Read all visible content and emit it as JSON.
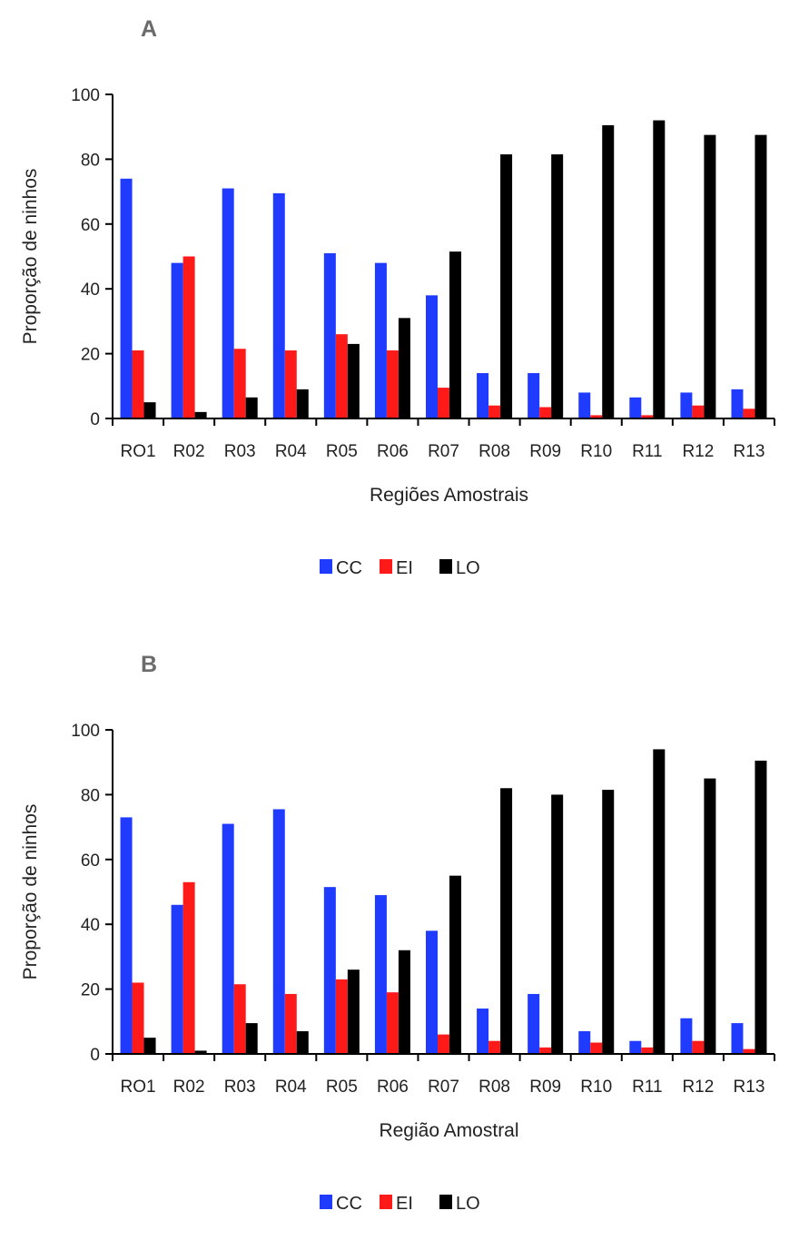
{
  "colors": {
    "CC": "#1f3bff",
    "EI": "#ff1a1a",
    "LO": "#000000"
  },
  "chart_data": [
    {
      "type": "bar",
      "panel_label": "A",
      "xlabel": "Regiões Amostrais",
      "ylabel": "Proporção de ninhos",
      "ylim": [
        0,
        100
      ],
      "yticks": [
        "0",
        "20",
        "40",
        "60",
        "80",
        "100"
      ],
      "categories": [
        "RO1",
        "R02",
        "R03",
        "R04",
        "R05",
        "R06",
        "R07",
        "R08",
        "R09",
        "R10",
        "R11",
        "R12",
        "R13"
      ],
      "series": [
        {
          "name": "CC",
          "values": [
            74,
            48,
            71,
            69.5,
            51,
            48,
            38,
            14,
            14,
            8,
            6.5,
            8,
            9
          ]
        },
        {
          "name": "EI",
          "values": [
            21,
            50,
            21.5,
            21,
            26,
            21,
            9.5,
            4,
            3.5,
            1,
            1,
            4,
            3
          ]
        },
        {
          "name": "LO",
          "values": [
            5,
            2,
            6.5,
            9,
            23,
            31,
            51.5,
            81.5,
            81.5,
            90.5,
            92,
            87.5,
            87.5
          ]
        }
      ],
      "legend": [
        "CC",
        "EI",
        "LO"
      ],
      "legend_position": "bottom",
      "grid": false
    },
    {
      "type": "bar",
      "panel_label": "B",
      "xlabel": "Região Amostral",
      "ylabel": "Proporção de ninhos",
      "ylim": [
        0,
        100
      ],
      "yticks": [
        "0",
        "20",
        "40",
        "60",
        "80",
        "100"
      ],
      "categories": [
        "RO1",
        "R02",
        "R03",
        "R04",
        "R05",
        "R06",
        "R07",
        "R08",
        "R09",
        "R10",
        "R11",
        "R12",
        "R13"
      ],
      "series": [
        {
          "name": "CC",
          "values": [
            73,
            46,
            71,
            75.5,
            51.5,
            49,
            38,
            14,
            18.5,
            7,
            4,
            11,
            9.5
          ]
        },
        {
          "name": "EI",
          "values": [
            22,
            53,
            21.5,
            18.5,
            23,
            19,
            6,
            4,
            2,
            3.5,
            2,
            4,
            1.5
          ]
        },
        {
          "name": "LO",
          "values": [
            5,
            1,
            9.5,
            7,
            26,
            32,
            55,
            82,
            80,
            81.5,
            94,
            85,
            90.5
          ]
        }
      ],
      "legend": [
        "CC",
        "EI",
        "LO"
      ],
      "legend_position": "bottom",
      "grid": false
    }
  ]
}
